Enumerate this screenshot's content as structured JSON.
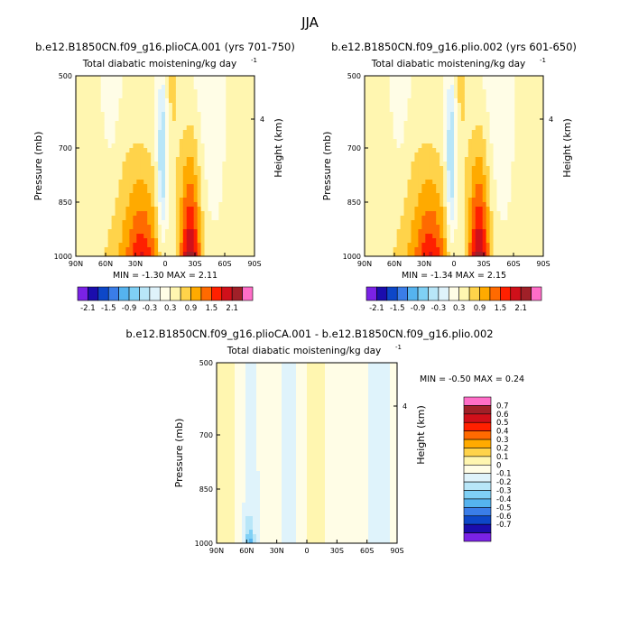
{
  "page": {
    "title": "JJA"
  },
  "colors": {
    "palette": [
      "#7a22e6",
      "#1b0dad",
      "#0d47c8",
      "#3a7de8",
      "#55b3ef",
      "#7fd0f5",
      "#b8e6f8",
      "#dff3fb",
      "#fffde6",
      "#fff6b0",
      "#ffd34a",
      "#ffaa00",
      "#ff6a00",
      "#ff2000",
      "#d0101a",
      "#a02028",
      "#ff6ec8"
    ],
    "background": "#ffffff",
    "frame": "#000000"
  },
  "chart_data": [
    {
      "type": "heatmap",
      "panel_id": "a",
      "title": "b.e12.B1850CN.f09_g16.plioCA.001 (yrs 701-750)",
      "subtitle": "Total diabatic moistening/kg day",
      "subtitle_exp": "-1",
      "ylabel": "Pressure (mb)",
      "y2label": "Height (km)",
      "x_ticks": [
        "90N",
        "60N",
        "30N",
        "0",
        "30S",
        "60S",
        "90S"
      ],
      "y_ticks": [
        "500",
        "700",
        "850",
        "1000"
      ],
      "y2_ticks": [
        "4"
      ],
      "ylim": [
        1000,
        500
      ],
      "stats_text": "MIN =   -1.30   MAX =    2.11",
      "min": -1.3,
      "max": 2.11,
      "levels": [
        -2.1,
        -1.8,
        -1.5,
        -1.2,
        -0.9,
        -0.6,
        -0.3,
        0,
        0.3,
        0.6,
        0.9,
        1.2,
        1.5,
        1.8,
        2.1
      ],
      "colorbar_labels": [
        "-2.1",
        "-1.5",
        "-0.9",
        "-0.3",
        "0.3",
        "0.9",
        "1.5",
        "2.1"
      ],
      "field": "base",
      "colorbar": "horizontal"
    },
    {
      "type": "heatmap",
      "panel_id": "b",
      "title": "b.e12.B1850CN.f09_g16.plio.002 (yrs 601-650)",
      "subtitle": "Total diabatic moistening/kg day",
      "subtitle_exp": "-1",
      "ylabel": "Pressure (mb)",
      "y2label": "Height (km)",
      "x_ticks": [
        "90N",
        "60N",
        "30N",
        "0",
        "30S",
        "60S",
        "90S"
      ],
      "y_ticks": [
        "500",
        "700",
        "850",
        "1000"
      ],
      "y2_ticks": [
        "4"
      ],
      "ylim": [
        1000,
        500
      ],
      "stats_text": "MIN =   -1.34   MAX =    2.15",
      "min": -1.34,
      "max": 2.15,
      "levels": [
        -2.1,
        -1.8,
        -1.5,
        -1.2,
        -0.9,
        -0.6,
        -0.3,
        0,
        0.3,
        0.6,
        0.9,
        1.2,
        1.5,
        1.8,
        2.1
      ],
      "colorbar_labels": [
        "-2.1",
        "-1.5",
        "-0.9",
        "-0.3",
        "0.3",
        "0.9",
        "1.5",
        "2.1"
      ],
      "field": "base",
      "colorbar": "horizontal"
    },
    {
      "type": "heatmap",
      "panel_id": "c",
      "title": "b.e12.B1850CN.f09_g16.plioCA.001 - b.e12.B1850CN.f09_g16.plio.002",
      "subtitle": "Total diabatic moistening/kg day",
      "subtitle_exp": "-1",
      "ylabel": "Pressure (mb)",
      "y2label": "Height (km)",
      "x_ticks": [
        "90N",
        "60N",
        "30N",
        "0",
        "30S",
        "60S",
        "90S"
      ],
      "y_ticks": [
        "500",
        "700",
        "850",
        "1000"
      ],
      "y2_ticks": [
        "4"
      ],
      "ylim": [
        1000,
        500
      ],
      "stats_text": "MIN =   -0.50   MAX =    0.24",
      "min": -0.5,
      "max": 0.24,
      "levels": [
        -0.7,
        -0.6,
        -0.5,
        -0.4,
        -0.3,
        -0.2,
        -0.1,
        0,
        0.1,
        0.2,
        0.3,
        0.4,
        0.5,
        0.6,
        0.7
      ],
      "colorbar_labels": [
        "0.7",
        "0.6",
        "0.5",
        "0.4",
        "0.3",
        "0.2",
        "0.1",
        "0",
        "-0.1",
        "-0.2",
        "-0.3",
        "-0.4",
        "-0.5",
        "-0.6",
        "-0.7"
      ],
      "field": "diff",
      "colorbar": "vertical"
    }
  ]
}
